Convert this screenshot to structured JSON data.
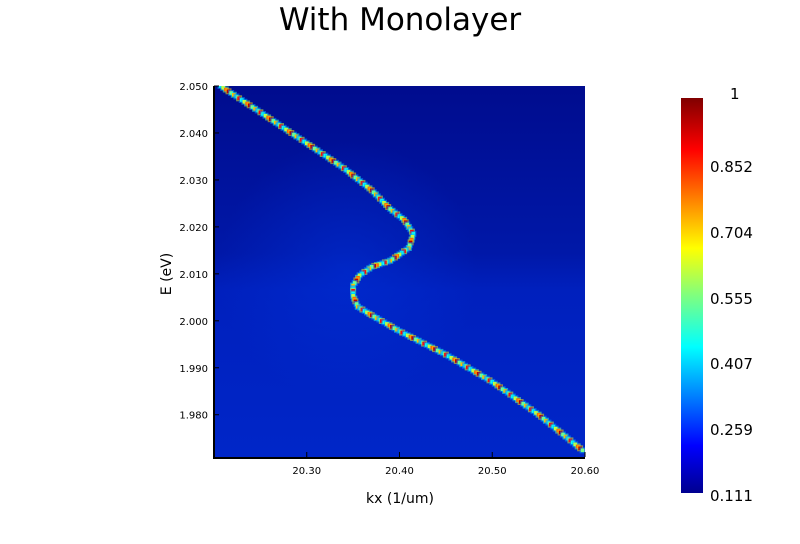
{
  "chart_data": {
    "type": "heatmap",
    "title": "With Monolayer",
    "xlabel": "kx (1/um)",
    "ylabel": "E (eV)",
    "xlim": [
      20.2,
      20.6
    ],
    "ylim": [
      1.971,
      2.05
    ],
    "x_ticks": [
      "20.30",
      "20.40",
      "20.50",
      "20.60"
    ],
    "y_ticks": [
      "1.980",
      "1.990",
      "2.000",
      "2.010",
      "2.020",
      "2.030",
      "2.040",
      "2.050"
    ],
    "colormap": "jet",
    "colorbar": {
      "min": 0.111,
      "max": 1,
      "tick_labels": [
        "1",
        "0.852",
        "0.704",
        "0.555",
        "0.407",
        "0.259",
        "0.111"
      ]
    },
    "background_intensity": 0.16,
    "dispersion_curve": [
      {
        "kx": 20.207,
        "E": 2.05
      },
      {
        "kx": 20.25,
        "E": 2.0444
      },
      {
        "kx": 20.3,
        "E": 2.0378
      },
      {
        "kx": 20.34,
        "E": 2.0325
      },
      {
        "kx": 20.37,
        "E": 2.0278
      },
      {
        "kx": 20.39,
        "E": 2.0238
      },
      {
        "kx": 20.405,
        "E": 2.0215
      },
      {
        "kx": 20.415,
        "E": 2.0185
      },
      {
        "kx": 20.41,
        "E": 2.0155
      },
      {
        "kx": 20.39,
        "E": 2.0128
      },
      {
        "kx": 20.37,
        "E": 2.0115
      },
      {
        "kx": 20.357,
        "E": 2.0097
      },
      {
        "kx": 20.35,
        "E": 2.0075
      },
      {
        "kx": 20.35,
        "E": 2.0053
      },
      {
        "kx": 20.355,
        "E": 2.003
      },
      {
        "kx": 20.37,
        "E": 2.0012
      },
      {
        "kx": 20.4,
        "E": 1.9978
      },
      {
        "kx": 20.45,
        "E": 1.9928
      },
      {
        "kx": 20.5,
        "E": 1.987
      },
      {
        "kx": 20.55,
        "E": 1.98
      },
      {
        "kx": 20.6,
        "E": 1.972
      }
    ]
  }
}
